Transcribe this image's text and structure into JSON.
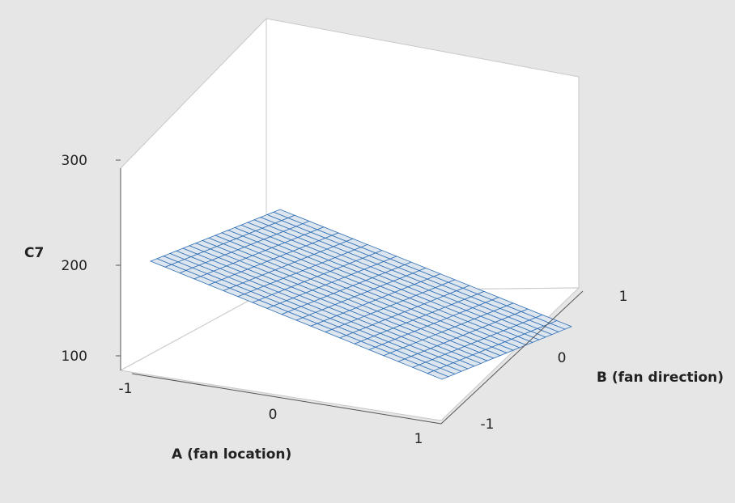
{
  "chart_data": {
    "type": "surface",
    "x_axis": {
      "label": "A (fan location)",
      "range": [
        -1,
        1
      ],
      "ticks": [
        -1,
        0,
        1
      ]
    },
    "y_axis": {
      "label": "B (fan direction)",
      "range": [
        -1,
        1
      ],
      "ticks": [
        -1,
        0,
        1
      ]
    },
    "z_axis": {
      "label": "C7",
      "range": [
        80,
        300
      ],
      "ticks": [
        100,
        200,
        300
      ]
    },
    "grid_x": [
      -1,
      1
    ],
    "grid_y": [
      -1,
      1
    ],
    "grid_z": [
      [
        175,
        190
      ],
      [
        165,
        182
      ]
    ],
    "surface_color": "#2e6fb5",
    "surface_fill": "#dde5ef"
  }
}
